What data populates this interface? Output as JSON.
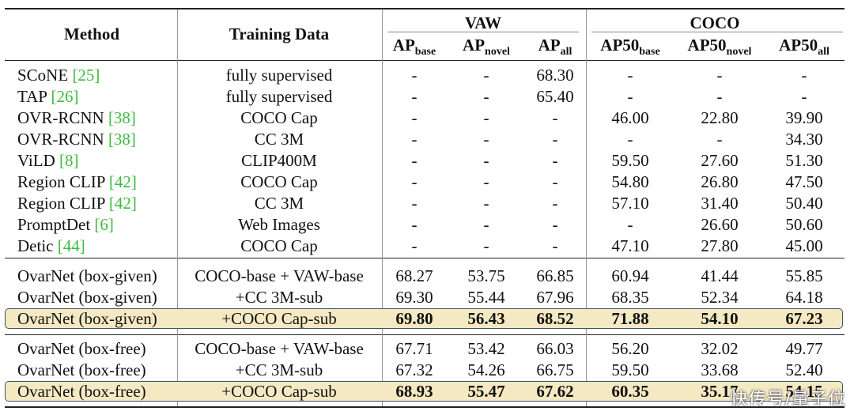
{
  "header": {
    "method": "Method",
    "training_data": "Training Data",
    "vaw_group": "VAW",
    "coco_group": "COCO",
    "vaw_cols": [
      {
        "main": "AP",
        "sub": "base"
      },
      {
        "main": "AP",
        "sub": "novel"
      },
      {
        "main": "AP",
        "sub": "all"
      }
    ],
    "coco_cols": [
      {
        "main": "AP50",
        "sub": "base"
      },
      {
        "main": "AP50",
        "sub": "novel"
      },
      {
        "main": "AP50",
        "sub": "all"
      }
    ]
  },
  "sections": [
    {
      "rows": [
        {
          "method": "SCoNE",
          "cite": "[25]",
          "data": "fully supervised",
          "vals": [
            "-",
            "-",
            "68.30",
            "-",
            "-",
            "-"
          ]
        },
        {
          "method": "TAP",
          "cite": "[26]",
          "data": "fully supervised",
          "vals": [
            "-",
            "-",
            "65.40",
            "-",
            "-",
            "-"
          ]
        },
        {
          "method": "OVR-RCNN",
          "cite": "[38]",
          "data": "COCO Cap",
          "vals": [
            "-",
            "-",
            "-",
            "46.00",
            "22.80",
            "39.90"
          ]
        },
        {
          "method": "OVR-RCNN",
          "cite": "[38]",
          "data": "CC 3M",
          "vals": [
            "-",
            "-",
            "-",
            "-",
            "-",
            "34.30"
          ]
        },
        {
          "method": "ViLD",
          "cite": "[8]",
          "data": "CLIP400M",
          "vals": [
            "-",
            "-",
            "-",
            "59.50",
            "27.60",
            "51.30"
          ]
        },
        {
          "method": "Region CLIP",
          "cite": "[42]",
          "data": "COCO Cap",
          "vals": [
            "-",
            "-",
            "-",
            "54.80",
            "26.80",
            "47.50"
          ]
        },
        {
          "method": "Region CLIP",
          "cite": "[42]",
          "data": "CC 3M",
          "vals": [
            "-",
            "-",
            "-",
            "57.10",
            "31.40",
            "50.40"
          ]
        },
        {
          "method": "PromptDet",
          "cite": "[6]",
          "data": "Web Images",
          "vals": [
            "-",
            "-",
            "-",
            "-",
            "26.60",
            "50.60"
          ]
        },
        {
          "method": "Detic",
          "cite": "[44]",
          "data": "COCO Cap",
          "vals": [
            "-",
            "-",
            "-",
            "47.10",
            "27.80",
            "45.00"
          ]
        }
      ]
    },
    {
      "rows": [
        {
          "method": "OvarNet (box-given)",
          "cite": "",
          "data": "COCO-base + VAW-base",
          "vals": [
            "68.27",
            "53.75",
            "66.85",
            "60.94",
            "41.44",
            "55.85"
          ]
        },
        {
          "method": "OvarNet (box-given)",
          "cite": "",
          "data": "+CC 3M-sub",
          "vals": [
            "69.30",
            "55.44",
            "67.96",
            "68.35",
            "52.34",
            "64.18"
          ]
        },
        {
          "method": "OvarNet (box-given)",
          "cite": "",
          "data": "+COCO Cap-sub",
          "vals": [
            "69.80",
            "56.43",
            "68.52",
            "71.88",
            "54.10",
            "67.23"
          ],
          "highlight": true
        }
      ]
    },
    {
      "rows": [
        {
          "method": "OvarNet (box-free)",
          "cite": "",
          "data": "COCO-base + VAW-base",
          "vals": [
            "67.71",
            "53.42",
            "66.03",
            "56.20",
            "32.02",
            "49.77"
          ]
        },
        {
          "method": "OvarNet (box-free)",
          "cite": "",
          "data": "+CC 3M-sub",
          "vals": [
            "67.32",
            "54.26",
            "66.75",
            "59.50",
            "33.68",
            "52.40"
          ]
        },
        {
          "method": "OvarNet (box-free)",
          "cite": "",
          "data": "+COCO Cap-sub",
          "vals": [
            "68.93",
            "55.47",
            "67.62",
            "60.35",
            "35.17",
            "54.15"
          ],
          "highlight": true
        }
      ]
    }
  ],
  "watermark": "快传号/量子位",
  "colors": {
    "highlight_fill": "#f4e9c2",
    "highlight_border": "#3d5468",
    "cite": "#3dbb3d"
  }
}
